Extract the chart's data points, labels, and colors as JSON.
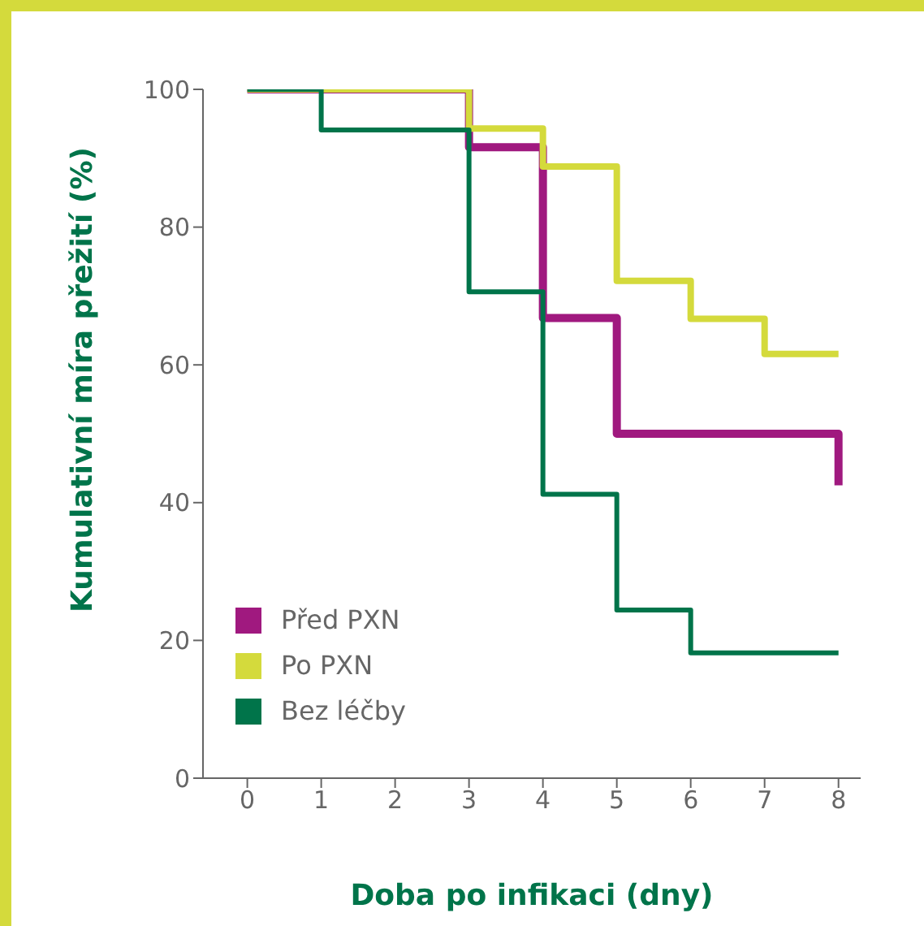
{
  "chart_data": {
    "type": "step",
    "xlabel": "Doba po infikaci (dny)",
    "ylabel": "Kumulativní míra přežití (%)",
    "xlim": [
      -0.6,
      8.3
    ],
    "xticks": [
      0,
      1,
      2,
      3,
      4,
      5,
      6,
      7,
      8
    ],
    "ylim": [
      0,
      100
    ],
    "yticks": [
      0,
      20,
      40,
      60,
      80,
      100
    ],
    "grid": false,
    "legend": "bottom left",
    "series": [
      {
        "name": "Před PXN",
        "color": "#a0197f",
        "x": [
          0,
          3,
          4,
          5,
          8,
          8
        ],
        "values": [
          100,
          91.6,
          66.8,
          50,
          50,
          42.5
        ]
      },
      {
        "name": "Po PXN",
        "color": "#d4da3c",
        "x": [
          0,
          3,
          4,
          5,
          6,
          7,
          8
        ],
        "values": [
          100,
          94.3,
          88.8,
          72.2,
          66.7,
          61.6,
          61.6
        ]
      },
      {
        "name": "Bez léčby",
        "color": "#00744a",
        "x": [
          0,
          1,
          3,
          4,
          5,
          6,
          8
        ],
        "values": [
          100,
          94.1,
          70.6,
          41.2,
          24.4,
          18.2,
          18.2
        ]
      }
    ]
  }
}
